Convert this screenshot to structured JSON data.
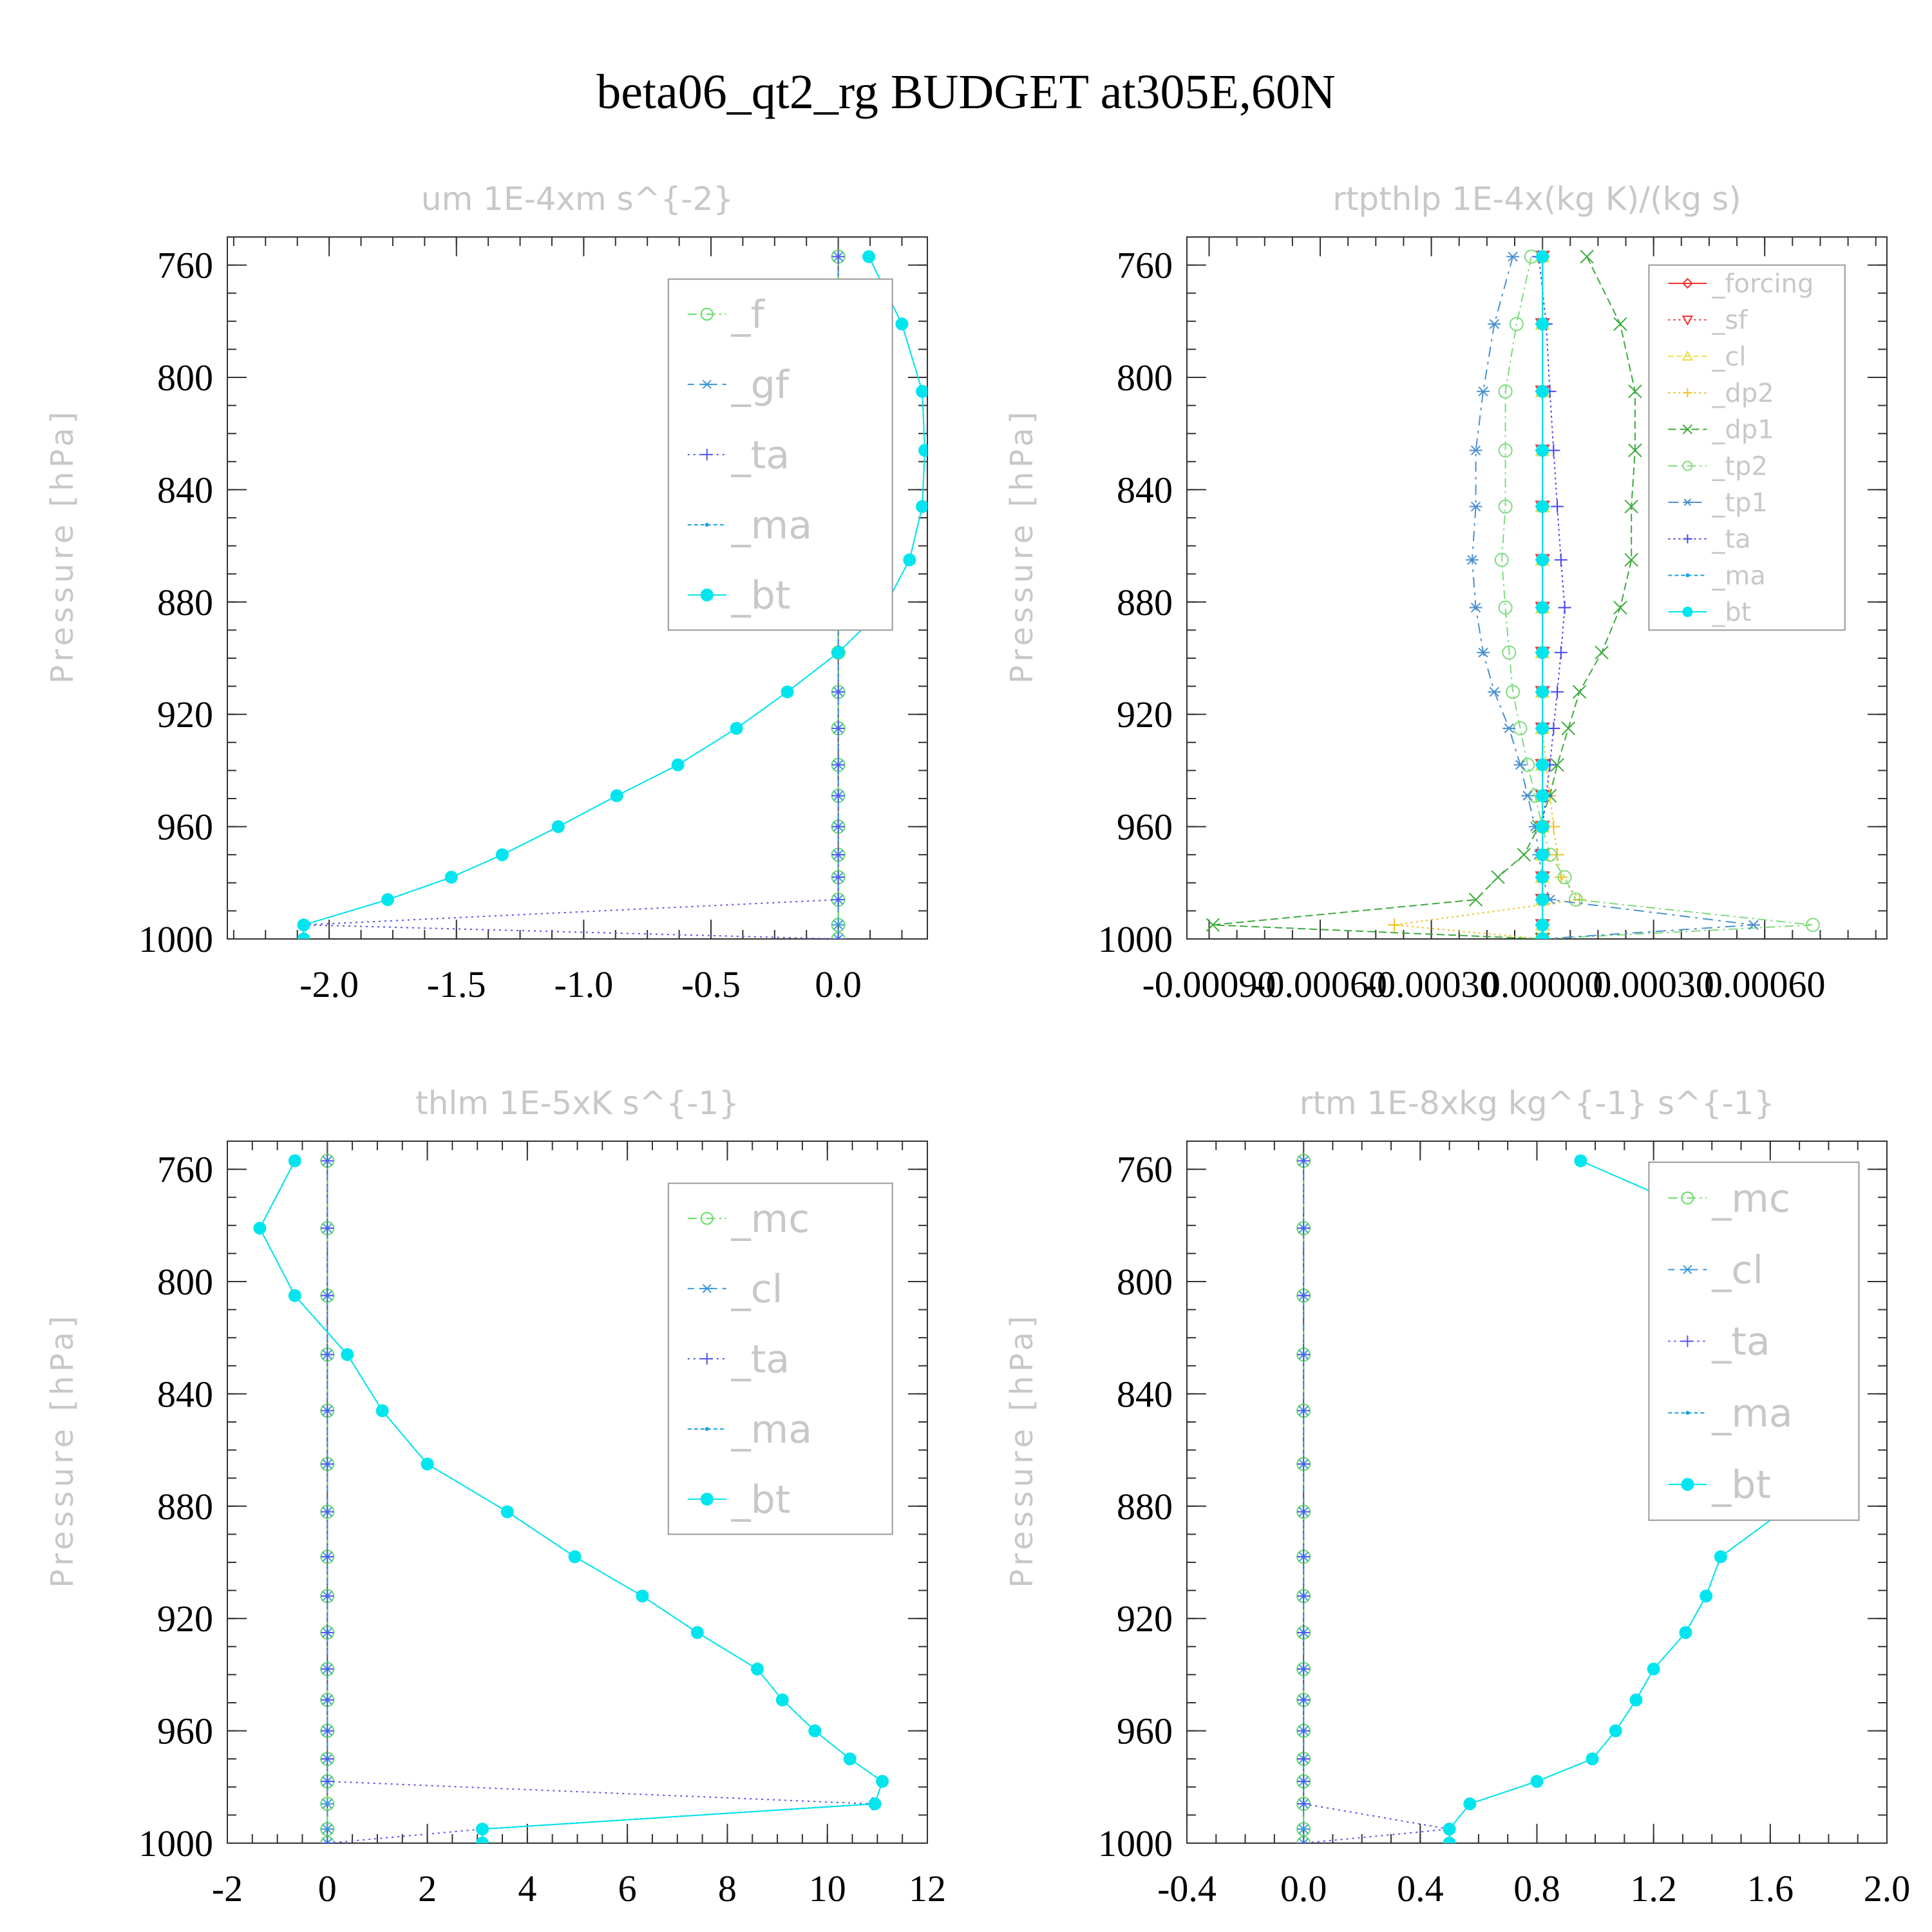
{
  "figure": {
    "title": "beta06_qt2_rg  BUDGET at305E,60N"
  },
  "chart_data": [
    {
      "type": "line",
      "title": "um   1E-4xm s^{-2}",
      "ylabel": "Pressure [hPa]",
      "ylim": [
        750,
        1000
      ],
      "y_reversed": true,
      "xlim": [
        -2.4,
        0.35
      ],
      "xticks": [
        "-2.0",
        "-1.5",
        "-1.0",
        "-0.5",
        "0.0"
      ],
      "xtick_values": [
        -2.0,
        -1.5,
        -1.0,
        -0.5,
        0.0
      ],
      "yticks": [
        "760",
        "800",
        "840",
        "880",
        "920",
        "960",
        "1000"
      ],
      "ytick_values": [
        760,
        800,
        840,
        880,
        920,
        960,
        1000
      ],
      "legend_position": "upper-right",
      "legend_font": 60,
      "legend_box": [
        0.63,
        0.95,
        0.94,
        0.44
      ],
      "p": [
        757,
        781,
        805,
        826,
        846,
        865,
        882,
        898,
        912,
        925,
        938,
        949,
        960,
        970,
        978,
        986,
        995,
        1000
      ],
      "series": [
        {
          "name": "_f",
          "color": "#66dd66",
          "marker": "circle",
          "dash": "14,6,3,6",
          "values": [
            0,
            0,
            0,
            0,
            0,
            0,
            0,
            0,
            0,
            0,
            0,
            0,
            0,
            0,
            0,
            0,
            0,
            0
          ]
        },
        {
          "name": "_gf",
          "color": "#3a9ad9",
          "marker": "star",
          "dash": "10,8",
          "values": [
            0,
            0,
            0,
            0,
            0,
            0,
            0,
            0,
            0,
            0,
            0,
            0,
            0,
            0,
            0,
            0,
            0,
            0
          ]
        },
        {
          "name": "_ta",
          "color": "#5555ee",
          "marker": "plus",
          "dash": "3,6",
          "values": [
            0,
            0,
            0,
            0,
            0,
            0,
            0,
            0,
            0,
            0,
            0,
            0,
            0,
            0,
            0,
            0,
            -2.1,
            0
          ]
        },
        {
          "name": "_ma",
          "color": "#1a9fdf",
          "marker": "dot",
          "dash": "6,4",
          "values": [
            0.12,
            0.25,
            0.33,
            0.34,
            0.33,
            0.28,
            0.18,
            0,
            -0.2,
            -0.4,
            -0.63,
            -0.87,
            -1.1,
            -1.32,
            -1.52,
            -1.77,
            -2.1,
            -2.1
          ]
        },
        {
          "name": "_bt",
          "color": "#00e5ee",
          "marker": "filled",
          "dash": "none",
          "values": [
            0.12,
            0.25,
            0.33,
            0.34,
            0.33,
            0.28,
            0.18,
            0,
            -0.2,
            -0.4,
            -0.63,
            -0.87,
            -1.1,
            -1.32,
            -1.52,
            -1.77,
            -2.1,
            -2.1
          ]
        }
      ]
    },
    {
      "type": "line",
      "title": "rtpthlp   1E-4x(kg K)/(kg s)",
      "ylabel": "Pressure [hPa]",
      "ylim": [
        750,
        1000
      ],
      "y_reversed": true,
      "xlim": [
        -0.00096,
        0.00093
      ],
      "xticks": [
        "-0.00090",
        "-0.00060",
        "-0.00030",
        "0.00000",
        "0.00030",
        "0.00060"
      ],
      "xtick_values": [
        -0.0009,
        -0.0006,
        -0.0003,
        0.0,
        0.0003,
        0.0006
      ],
      "yticks": [
        "760",
        "800",
        "840",
        "880",
        "920",
        "960",
        "1000"
      ],
      "ytick_values": [
        760,
        800,
        840,
        880,
        920,
        960,
        1000
      ],
      "legend_position": "upper-right",
      "legend_font": 40,
      "legend_box": [
        0.66,
        0.94,
        0.96,
        0.44
      ],
      "p": [
        757,
        781,
        805,
        826,
        846,
        865,
        882,
        898,
        912,
        925,
        938,
        949,
        960,
        970,
        978,
        986,
        995,
        1000
      ],
      "series": [
        {
          "name": "_forcing",
          "color": "#ee3333",
          "marker": "diamond",
          "dash": "none",
          "values": [
            0,
            0,
            0,
            0,
            0,
            0,
            0,
            0,
            0,
            0,
            0,
            0,
            0,
            0,
            0,
            0,
            0,
            0
          ]
        },
        {
          "name": "_sf",
          "color": "#ee3333",
          "marker": "triangle-down",
          "dash": "3,5",
          "values": [
            0,
            0,
            0,
            0,
            0,
            0,
            0,
            0,
            0,
            0,
            0,
            0,
            0,
            0,
            0,
            0,
            0,
            0
          ]
        },
        {
          "name": "_cl",
          "color": "#eedd44",
          "marker": "triangle",
          "dash": "8,5",
          "values": [
            0,
            0,
            0,
            0,
            0,
            0,
            0,
            0,
            0,
            0,
            0,
            0,
            0,
            0,
            0,
            0,
            0,
            0
          ]
        },
        {
          "name": "_dp2",
          "color": "#f0c020",
          "marker": "plus",
          "dash": "3,5",
          "values": [
            0,
            0,
            0,
            0,
            0,
            0,
            0,
            0,
            0,
            0,
            1e-05,
            2e-05,
            3e-05,
            4e-05,
            5e-05,
            0.0001,
            -0.0004,
            0
          ]
        },
        {
          "name": "_dp1",
          "color": "#3caa3c",
          "marker": "x",
          "dash": "12,6",
          "values": [
            0.00012,
            0.00021,
            0.00025,
            0.00025,
            0.00024,
            0.00024,
            0.00021,
            0.00016,
            0.0001,
            7e-05,
            4e-05,
            2e-05,
            -1e-05,
            -5e-05,
            -0.00012,
            -0.00018,
            -0.00089,
            0
          ]
        },
        {
          "name": "_tp2",
          "color": "#7ddc7d",
          "marker": "circle",
          "dash": "14,6,3,6",
          "values": [
            -3e-05,
            -7e-05,
            -0.0001,
            -0.0001,
            -0.0001,
            -0.00011,
            -0.0001,
            -9e-05,
            -8e-05,
            -6e-05,
            -4e-05,
            -2e-05,
            0,
            2e-05,
            6e-05,
            9e-05,
            0.00073,
            0
          ]
        },
        {
          "name": "_tp1",
          "color": "#4a90d0",
          "marker": "star",
          "dash": "16,8,4,8",
          "values": [
            -8e-05,
            -0.00013,
            -0.00016,
            -0.00018,
            -0.00018,
            -0.00019,
            -0.00018,
            -0.00016,
            -0.00013,
            -9e-05,
            -6e-05,
            -4e-05,
            -2e-05,
            -1e-05,
            0,
            2e-05,
            0.00057,
            0
          ]
        },
        {
          "name": "_ta",
          "color": "#4444ee",
          "marker": "plus",
          "dash": "3,5",
          "values": [
            -1e-05,
            1e-05,
            2e-05,
            3e-05,
            4e-05,
            5e-05,
            6e-05,
            5e-05,
            4e-05,
            3e-05,
            2e-05,
            1e-05,
            0,
            0,
            0,
            0,
            0,
            0
          ]
        },
        {
          "name": "_ma",
          "color": "#1a9fdf",
          "marker": "dot",
          "dash": "6,4",
          "values": [
            0,
            0,
            0,
            0,
            0,
            0,
            0,
            0,
            0,
            0,
            0,
            0,
            0,
            0,
            0,
            0,
            0,
            0
          ]
        },
        {
          "name": "_bt",
          "color": "#00e5ee",
          "marker": "filled",
          "dash": "none",
          "values": [
            0,
            0,
            0,
            0,
            0,
            0,
            0,
            0,
            0,
            0,
            0,
            0,
            0,
            0,
            0,
            0,
            0,
            0
          ]
        }
      ]
    },
    {
      "type": "line",
      "title": "thlm   1E-5xK s^{-1}",
      "ylabel": "Pressure [hPa]",
      "ylim": [
        750,
        1000
      ],
      "y_reversed": true,
      "xlim": [
        -2,
        12
      ],
      "xticks": [
        "-2",
        "0",
        "2",
        "4",
        "6",
        "8",
        "10",
        "12"
      ],
      "xtick_values": [
        -2,
        0,
        2,
        4,
        6,
        8,
        10,
        12
      ],
      "yticks": [
        "760",
        "800",
        "840",
        "880",
        "920",
        "960",
        "1000"
      ],
      "ytick_values": [
        760,
        800,
        840,
        880,
        920,
        960,
        1000
      ],
      "legend_position": "upper-right",
      "legend_font": 60,
      "legend_box": [
        0.63,
        0.95,
        0.94,
        0.44
      ],
      "p": [
        757,
        781,
        805,
        826,
        846,
        865,
        882,
        898,
        912,
        925,
        938,
        949,
        960,
        970,
        978,
        986,
        995,
        1000
      ],
      "series": [
        {
          "name": "_mc",
          "color": "#66dd66",
          "marker": "circle",
          "dash": "14,6,3,6",
          "values": [
            0,
            0,
            0,
            0,
            0,
            0,
            0,
            0,
            0,
            0,
            0,
            0,
            0,
            0,
            0,
            0,
            0,
            0
          ]
        },
        {
          "name": "_cl",
          "color": "#3a9ad9",
          "marker": "star",
          "dash": "10,8",
          "values": [
            0,
            0,
            0,
            0,
            0,
            0,
            0,
            0,
            0,
            0,
            0,
            0,
            0,
            0,
            0,
            0,
            0,
            0
          ]
        },
        {
          "name": "_ta",
          "color": "#5555ee",
          "marker": "plus",
          "dash": "3,6",
          "values": [
            0,
            0,
            0,
            0,
            0,
            0,
            0,
            0,
            0,
            0,
            0,
            0,
            0,
            0,
            0,
            10.9,
            3.1,
            0
          ]
        },
        {
          "name": "_ma",
          "color": "#1a9fdf",
          "marker": "dot",
          "dash": "6,4",
          "values": [
            -0.65,
            -1.35,
            -0.65,
            0.4,
            1.1,
            2.0,
            3.6,
            4.95,
            6.3,
            7.4,
            8.6,
            9.1,
            9.75,
            10.45,
            11.1,
            10.95,
            3.1,
            3.1
          ]
        },
        {
          "name": "_bt",
          "color": "#00e5ee",
          "marker": "filled",
          "dash": "none",
          "values": [
            -0.65,
            -1.35,
            -0.65,
            0.4,
            1.1,
            2.0,
            3.6,
            4.95,
            6.3,
            7.4,
            8.6,
            9.1,
            9.75,
            10.45,
            11.1,
            10.95,
            3.1,
            3.1
          ]
        }
      ]
    },
    {
      "type": "line",
      "title": "rtm   1E-8xkg kg^{-1} s^{-1}",
      "ylabel": "Pressure [hPa]",
      "ylim": [
        750,
        1000
      ],
      "y_reversed": true,
      "xlim": [
        -0.4,
        2.0
      ],
      "xticks": [
        "-0.4",
        "0.0",
        "0.4",
        "0.8",
        "1.2",
        "1.6",
        "2.0"
      ],
      "xtick_values": [
        -0.4,
        0.0,
        0.4,
        0.8,
        1.2,
        1.6,
        2.0
      ],
      "yticks": [
        "760",
        "800",
        "840",
        "880",
        "920",
        "960",
        "1000"
      ],
      "ytick_values": [
        760,
        800,
        840,
        880,
        920,
        960,
        1000
      ],
      "legend_position": "upper-right",
      "legend_font": 60,
      "legend_box": [
        0.66,
        0.96,
        0.97,
        0.46
      ],
      "p": [
        757,
        781,
        805,
        826,
        846,
        865,
        882,
        898,
        912,
        925,
        938,
        949,
        960,
        970,
        978,
        986,
        995,
        1000
      ],
      "series": [
        {
          "name": "_mc",
          "color": "#66dd66",
          "marker": "circle",
          "dash": "14,6,3,6",
          "values": [
            0,
            0,
            0,
            0,
            0,
            0,
            0,
            0,
            0,
            0,
            0,
            0,
            0,
            0,
            0,
            0,
            0,
            0
          ]
        },
        {
          "name": "_cl",
          "color": "#3a9ad9",
          "marker": "star",
          "dash": "10,8",
          "values": [
            0,
            0,
            0,
            0,
            0,
            0,
            0,
            0,
            0,
            0,
            0,
            0,
            0,
            0,
            0,
            0,
            0,
            0
          ]
        },
        {
          "name": "_ta",
          "color": "#5555ee",
          "marker": "plus",
          "dash": "3,6",
          "values": [
            0,
            0,
            0,
            0,
            0,
            0,
            0,
            0,
            0,
            0,
            0,
            0,
            0,
            0,
            0,
            0,
            0.5,
            0
          ]
        },
        {
          "name": "_ma",
          "color": "#1a9fdf",
          "marker": "dot",
          "dash": "6,4",
          "values": [
            0.95,
            1.48,
            1.87,
            1.88,
            1.82,
            1.78,
            1.64,
            1.43,
            1.38,
            1.31,
            1.2,
            1.14,
            1.07,
            0.99,
            0.8,
            0.57,
            0.5,
            0.5
          ]
        },
        {
          "name": "_bt",
          "color": "#00e5ee",
          "marker": "filled",
          "dash": "none",
          "values": [
            0.95,
            1.48,
            1.87,
            1.88,
            1.82,
            1.78,
            1.64,
            1.43,
            1.38,
            1.31,
            1.2,
            1.14,
            1.07,
            0.99,
            0.8,
            0.57,
            0.5,
            0.5
          ]
        }
      ]
    }
  ]
}
